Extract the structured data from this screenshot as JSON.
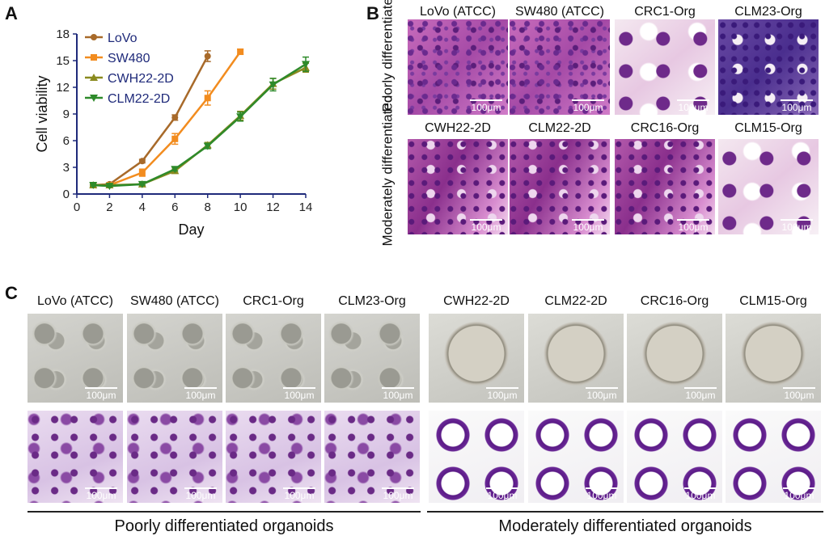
{
  "panels": {
    "a": "A",
    "b": "B",
    "c": "C"
  },
  "chart_data": {
    "type": "line",
    "xlabel": "Day",
    "ylabel": "Cell viability",
    "xlim": [
      0,
      14
    ],
    "ylim": [
      0,
      18
    ],
    "xticks": [
      0,
      2,
      4,
      6,
      8,
      10,
      12,
      14
    ],
    "yticks": [
      0,
      3,
      6,
      9,
      12,
      15,
      18
    ],
    "legend_position": "top-left",
    "series": [
      {
        "name": "LoVo",
        "color": "#a86a2a",
        "marker": "circle",
        "x": [
          1,
          2,
          4,
          6,
          8
        ],
        "y": [
          1.0,
          1.1,
          3.7,
          8.6,
          15.5
        ],
        "err": [
          0.1,
          0.1,
          0.2,
          0.3,
          0.6
        ]
      },
      {
        "name": "SW480",
        "color": "#f28c1f",
        "marker": "square",
        "x": [
          1,
          2,
          4,
          6,
          8,
          10
        ],
        "y": [
          1.0,
          1.0,
          2.4,
          6.2,
          10.8,
          16.0
        ],
        "err": [
          0.1,
          0.1,
          0.4,
          0.6,
          0.8,
          0.3
        ]
      },
      {
        "name": "CWH22-2D",
        "color": "#8a8a1e",
        "marker": "triangle-up",
        "x": [
          1,
          2,
          4,
          6,
          8,
          10,
          12,
          14
        ],
        "y": [
          1.0,
          1.0,
          1.1,
          2.6,
          5.5,
          8.8,
          12.4,
          14.2
        ],
        "err": [
          0.1,
          0.1,
          0.1,
          0.2,
          0.3,
          0.5,
          0.6,
          0.5
        ]
      },
      {
        "name": "CLM22-2D",
        "color": "#2e8a2a",
        "marker": "triangle-down",
        "x": [
          1,
          2,
          4,
          6,
          8,
          10,
          12,
          14
        ],
        "y": [
          1.0,
          0.9,
          1.1,
          2.8,
          5.4,
          8.7,
          12.3,
          14.6
        ],
        "err": [
          0.1,
          0.1,
          0.1,
          0.2,
          0.3,
          0.5,
          0.7,
          0.8
        ]
      }
    ]
  },
  "panel_b": {
    "row_labels": [
      "Poorly differentiated",
      "Moderately differentiated"
    ],
    "row1": [
      "LoVo (ATCC)",
      "SW480 (ATCC)",
      "CRC1-Org",
      "CLM23-Org"
    ],
    "row2": [
      "CWH22-2D",
      "CLM22-2D",
      "CRC16-Org",
      "CLM15-Org"
    ],
    "scale": "100μm"
  },
  "panel_c": {
    "labels": [
      "LoVo (ATCC)",
      "SW480 (ATCC)",
      "CRC1-Org",
      "CLM23-Org",
      "CWH22-2D",
      "CLM22-2D",
      "CRC16-Org",
      "CLM15-Org"
    ],
    "scale": "100μm",
    "footer_left": "Poorly differentiated organoids",
    "footer_right": "Moderately differentiated organoids"
  }
}
